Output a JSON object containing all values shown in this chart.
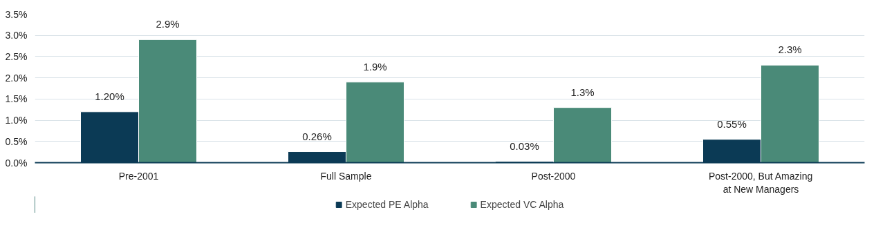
{
  "chart_data": {
    "type": "bar",
    "categories": [
      "Pre-2001",
      "Full Sample",
      "Post-2000",
      "Post-2000, But Amazing\nat New Managers"
    ],
    "series": [
      {
        "name": "Expected PE Alpha",
        "color": "#0b3a55",
        "values": [
          1.2,
          0.26,
          0.03,
          0.55
        ],
        "value_labels": [
          "1.20%",
          "0.26%",
          "0.03%",
          "0.55%"
        ]
      },
      {
        "name": "Expected VC Alpha",
        "color": "#4a8a78",
        "values": [
          2.9,
          1.9,
          1.3,
          2.3
        ],
        "value_labels": [
          "2.9%",
          "1.9%",
          "1.3%",
          "2.3%"
        ]
      }
    ],
    "ylim": [
      0,
      3.5
    ],
    "yticks": [
      {
        "value": 0,
        "label": "0.0%"
      },
      {
        "value": 0.5,
        "label": "0.5%"
      },
      {
        "value": 1,
        "label": "1.0%"
      },
      {
        "value": 1.5,
        "label": "1.5%"
      },
      {
        "value": 2,
        "label": "2.0%"
      },
      {
        "value": 2.5,
        "label": "2.5%"
      },
      {
        "value": 3,
        "label": "3.0%"
      },
      {
        "value": 3.5,
        "label": "3.5%"
      }
    ],
    "grid": "y",
    "legend": "bottom"
  }
}
